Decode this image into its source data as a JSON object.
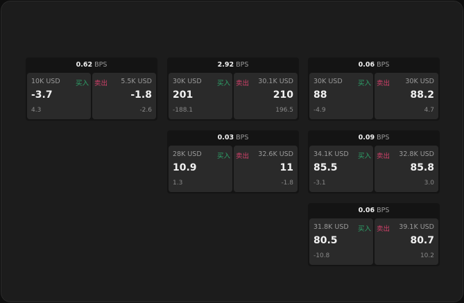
{
  "unit": "BPS",
  "labels": {
    "buy": "买入",
    "sell": "卖出"
  },
  "colors": {
    "buy": "#2ea36a",
    "sell": "#d0406a"
  },
  "cards": [
    {
      "spread": "0.62",
      "buy": {
        "qty": "10K USD",
        "price": "-3.7",
        "change": "4.3"
      },
      "sell": {
        "qty": "5.5K USD",
        "price": "-1.8",
        "change": "-2.6"
      }
    },
    {
      "spread": "2.92",
      "buy": {
        "qty": "30K USD",
        "price": "201",
        "change": "-188.1"
      },
      "sell": {
        "qty": "30.1K USD",
        "price": "210",
        "change": "196.5"
      }
    },
    {
      "spread": "0.06",
      "buy": {
        "qty": "30K USD",
        "price": "88",
        "change": "-4.9"
      },
      "sell": {
        "qty": "30K USD",
        "price": "88.2",
        "change": "4.7"
      }
    },
    {
      "spread": "0.03",
      "buy": {
        "qty": "28K USD",
        "price": "10.9",
        "change": "1.3"
      },
      "sell": {
        "qty": "32.6K USD",
        "price": "11",
        "change": "-1.8"
      }
    },
    {
      "spread": "0.09",
      "buy": {
        "qty": "34.1K USD",
        "price": "85.5",
        "change": "-3.1"
      },
      "sell": {
        "qty": "32.8K USD",
        "price": "85.8",
        "change": "3.0"
      }
    },
    {
      "spread": "0.06",
      "buy": {
        "qty": "31.8K USD",
        "price": "80.5",
        "change": "-10.8"
      },
      "sell": {
        "qty": "39.1K USD",
        "price": "80.7",
        "change": "10.2"
      }
    }
  ]
}
